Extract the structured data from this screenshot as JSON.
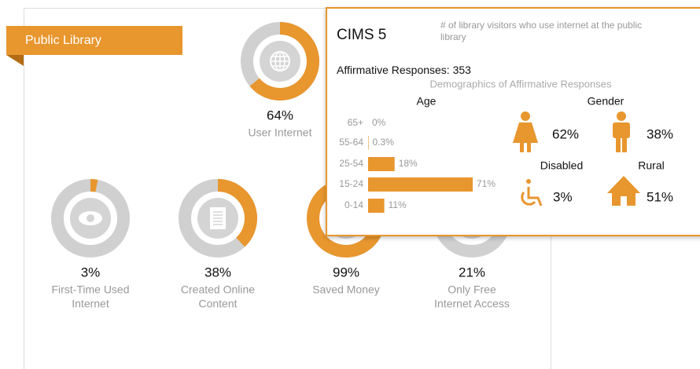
{
  "panel": {
    "title": "Public Library",
    "metrics": [
      {
        "value": 64,
        "value_label": "64%",
        "label_lines": [
          "User Internet"
        ]
      },
      {
        "value": 3,
        "value_label": "3%",
        "label_lines": [
          "First-Time Used",
          "Internet"
        ]
      },
      {
        "value": 38,
        "value_label": "38%",
        "label_lines": [
          "Created Online",
          "Content"
        ]
      },
      {
        "value": 99,
        "value_label": "99%",
        "label_lines": [
          "Saved Money"
        ]
      },
      {
        "value": 21,
        "value_label": "21%",
        "label_lines": [
          "Only Free",
          "Internet Access"
        ]
      }
    ]
  },
  "popup": {
    "title": "CIMS 5",
    "description_lines": [
      "# of library visitors who use internet at the public",
      "library"
    ],
    "affirmative_label": "Affirmative Responses:",
    "affirmative_count": 353,
    "subtitle": "Demographics of Affirmative Responses",
    "age": {
      "title": "Age",
      "groups": [
        {
          "label": "65+",
          "value": 0,
          "value_label": "0%"
        },
        {
          "label": "55-64",
          "value": 0.3,
          "value_label": "0.3%"
        },
        {
          "label": "25-54",
          "value": 18,
          "value_label": "18%"
        },
        {
          "label": "15-24",
          "value": 71,
          "value_label": "71%"
        },
        {
          "label": "0-14",
          "value": 11,
          "value_label": "11%"
        }
      ]
    },
    "gender": {
      "title": "Gender",
      "female": "62%",
      "male": "38%"
    },
    "disabled": {
      "title": "Disabled",
      "value_label": "3%"
    },
    "rural": {
      "title": "Rural",
      "value_label": "51%"
    }
  }
}
